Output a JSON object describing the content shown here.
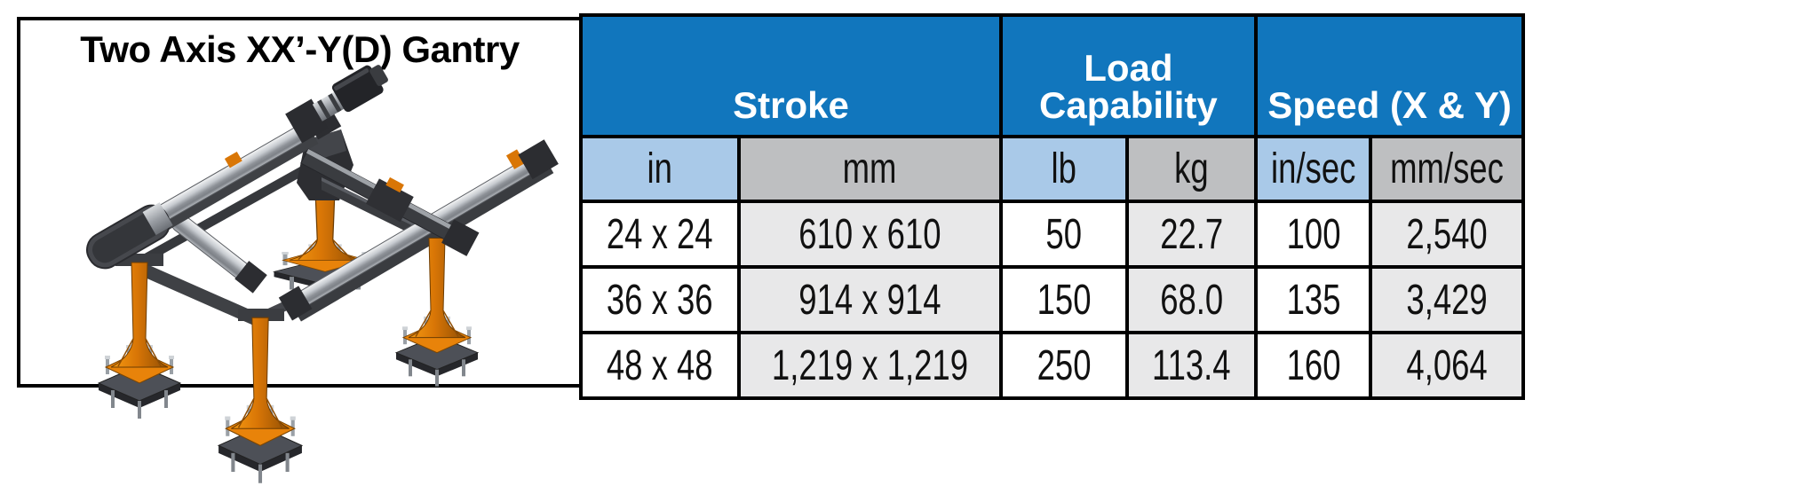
{
  "panel": {
    "title": "Two Axis XX’-Y(D) Gantry",
    "illustration": "two-axis-xy-gantry-3d-render"
  },
  "table": {
    "groups": [
      {
        "label": "Stroke"
      },
      {
        "label": "Load\nCapability"
      },
      {
        "label": "Speed (X & Y)"
      }
    ],
    "units": [
      "in",
      "mm",
      "lb",
      "kg",
      "in/sec",
      "mm/sec"
    ],
    "rows": [
      [
        "24 x 24",
        "610 x 610",
        "50",
        "22.7",
        "100",
        "2,540"
      ],
      [
        "36 x 36",
        "914 x 914",
        "150",
        "68.0",
        "135",
        "3,429"
      ],
      [
        "48 x 48",
        "1,219 x 1,219",
        "250",
        "113.4",
        "160",
        "4,064"
      ]
    ]
  },
  "colors": {
    "header_blue": "#1176BD",
    "unit_blue": "#A9C9E8",
    "unit_gray": "#BEBFC1",
    "row_gray": "#E8E8E9",
    "machine_orange": "#D97606",
    "border_black": "#000000"
  }
}
